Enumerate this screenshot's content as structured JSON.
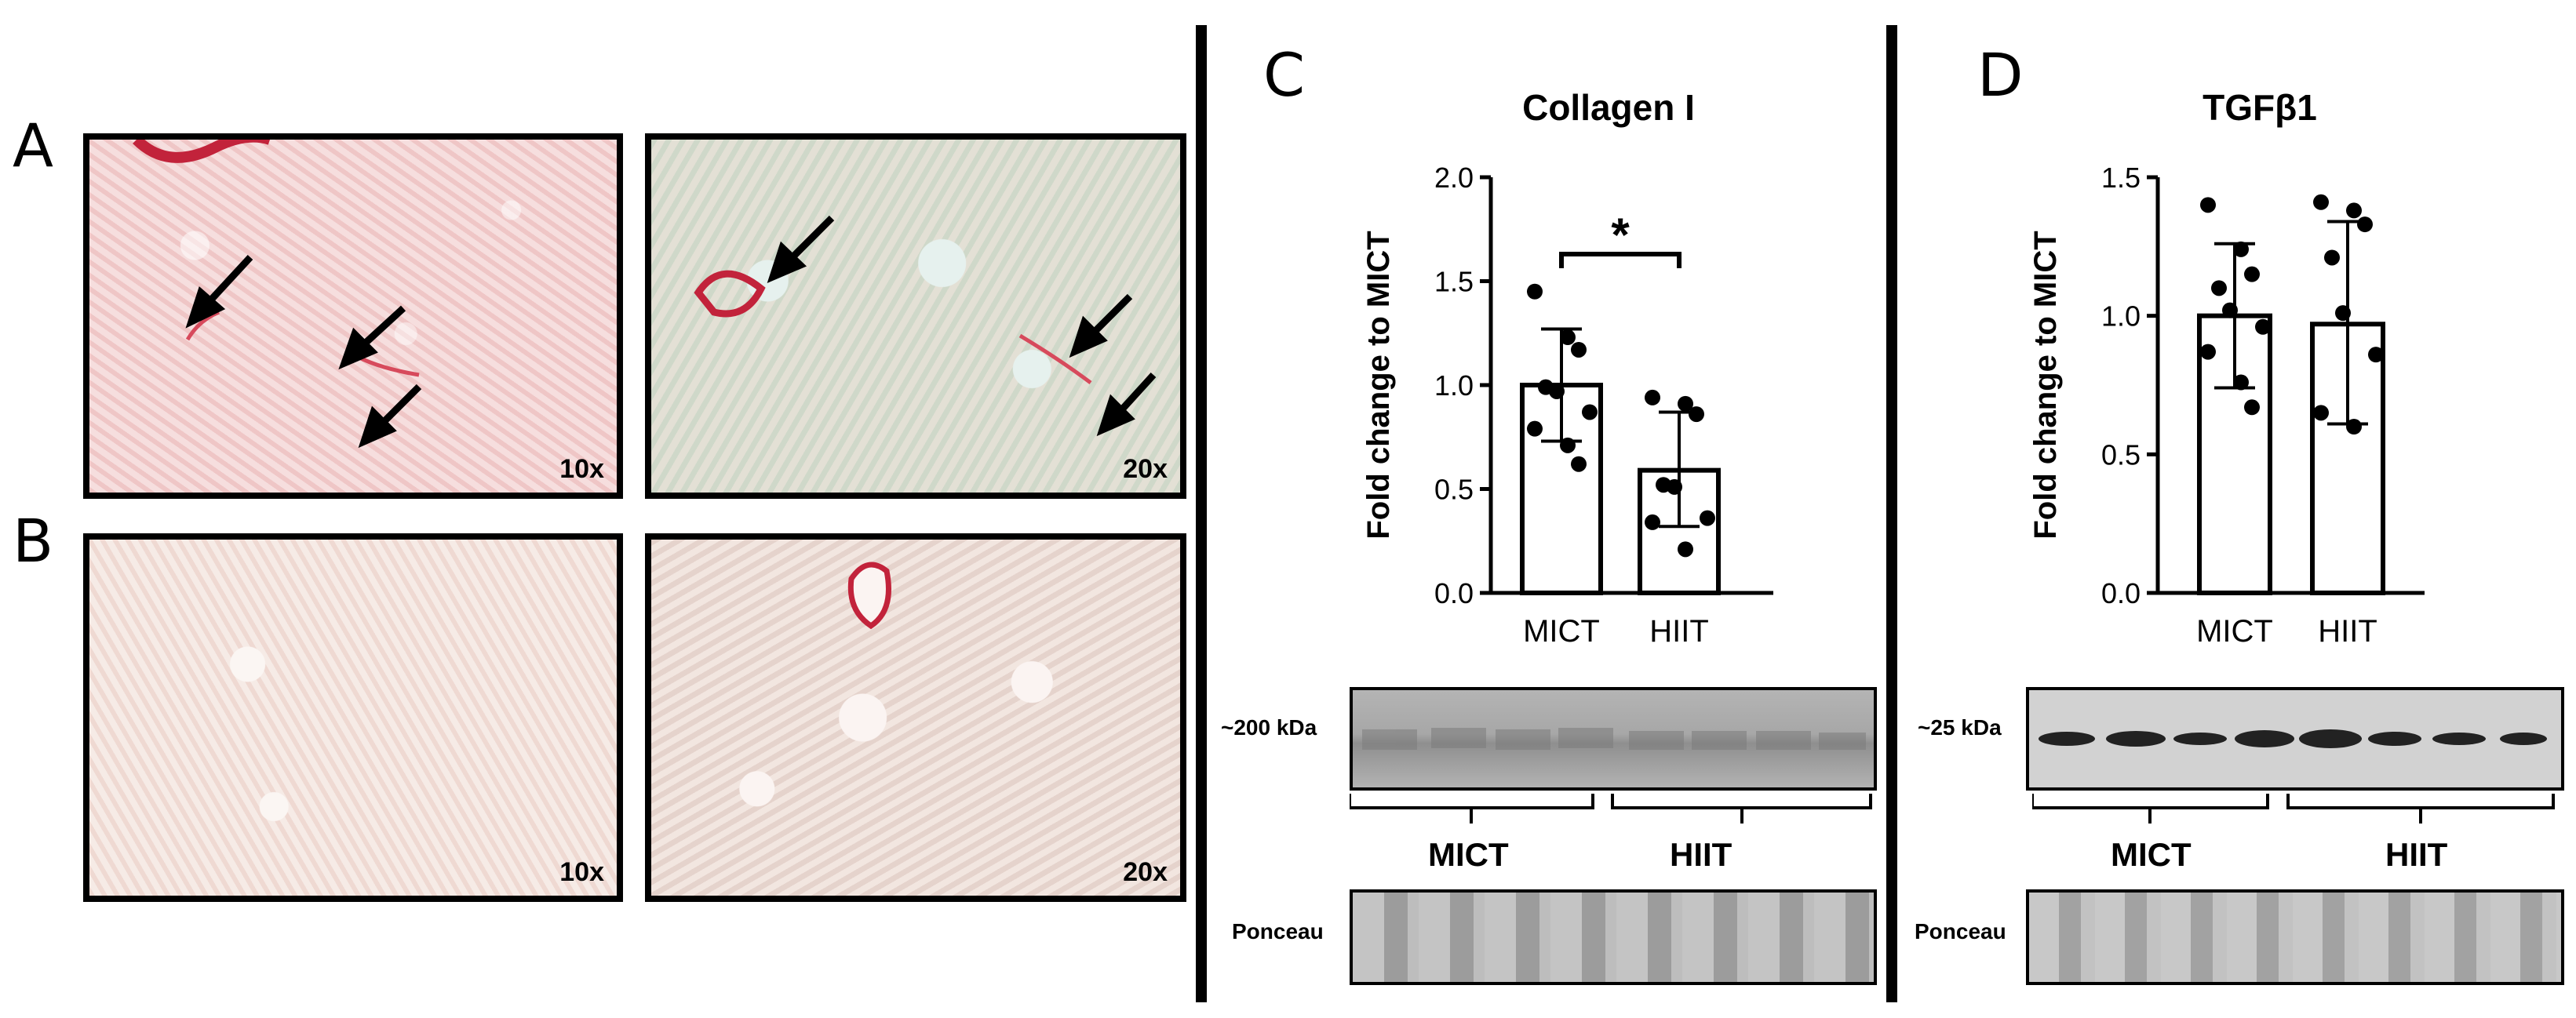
{
  "panels": {
    "A": "A",
    "B": "B",
    "C": "C",
    "D": "D"
  },
  "micrographs": {
    "a10": "10x",
    "a20": "20x",
    "b10": "10x",
    "b20": "20x"
  },
  "collagen": {
    "title": "Collagen I",
    "ylabel": "Fold change to MICT",
    "yticks": [
      "0.0",
      "0.5",
      "1.0",
      "1.5",
      "2.0"
    ],
    "xlabels": [
      "MICT",
      "HIIT"
    ],
    "significance": "*",
    "blot_label": "~200 kDa",
    "ponceau_label": "Ponceau",
    "groups": [
      "MICT",
      "HIIT"
    ]
  },
  "tgfb": {
    "title": "TGFβ1",
    "ylabel": "Fold change to MICT",
    "yticks": [
      "0.0",
      "0.5",
      "1.0",
      "1.5"
    ],
    "xlabels": [
      "MICT",
      "HIIT"
    ],
    "blot_label": "~25 kDa",
    "ponceau_label": "Ponceau",
    "groups": [
      "MICT",
      "HIIT"
    ]
  },
  "chart_data": [
    {
      "type": "bar",
      "title": "Collagen I",
      "ylabel": "Fold change to MICT",
      "categories": [
        "MICT",
        "HIIT"
      ],
      "values": [
        1.0,
        0.59
      ],
      "error_low": [
        0.73,
        0.32
      ],
      "error_high": [
        1.27,
        0.87
      ],
      "points": [
        [
          1.45,
          1.23,
          1.17,
          0.99,
          0.97,
          0.87,
          0.79,
          0.71,
          0.62
        ],
        [
          0.94,
          0.91,
          0.86,
          0.52,
          0.51,
          0.36,
          0.34,
          0.21
        ]
      ],
      "ylim": [
        0,
        2.0
      ],
      "significance": "*"
    },
    {
      "type": "bar",
      "title": "TGFβ1",
      "ylabel": "Fold change to MICT",
      "categories": [
        "MICT",
        "HIIT"
      ],
      "values": [
        1.0,
        0.97
      ],
      "error_low": [
        0.74,
        0.61
      ],
      "error_high": [
        1.26,
        1.34
      ],
      "points": [
        [
          1.4,
          1.24,
          1.15,
          1.1,
          1.02,
          0.96,
          0.87,
          0.76,
          0.67
        ],
        [
          1.41,
          1.38,
          1.33,
          1.21,
          1.01,
          0.86,
          0.65,
          0.6
        ]
      ],
      "ylim": [
        0,
        1.5
      ]
    }
  ]
}
